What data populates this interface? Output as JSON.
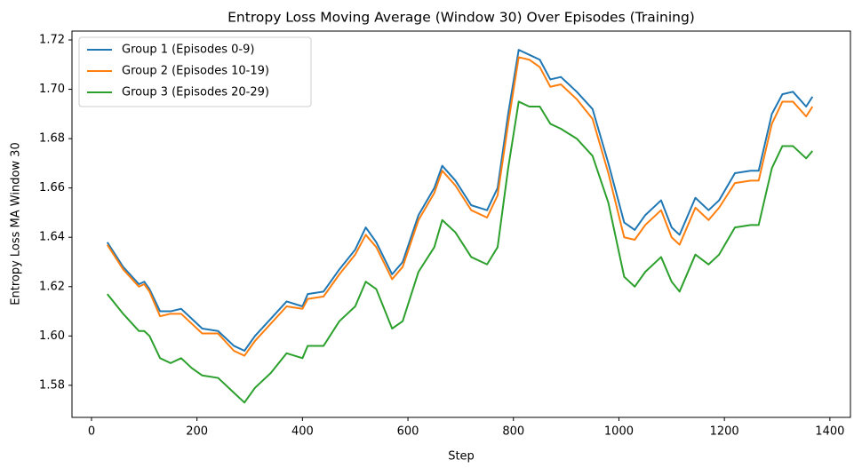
{
  "chart_data": {
    "type": "line",
    "title": "Entropy Loss Moving Average (Window 30) Over Episodes (Training)",
    "x_label": "Step",
    "y_label": "Entropy Loss  MA Window 30",
    "x": [
      30,
      60,
      90,
      100,
      110,
      130,
      150,
      170,
      190,
      210,
      240,
      270,
      290,
      310,
      340,
      370,
      400,
      410,
      440,
      470,
      500,
      520,
      540,
      570,
      590,
      620,
      650,
      665,
      690,
      720,
      750,
      770,
      790,
      810,
      830,
      850,
      870,
      890,
      920,
      950,
      980,
      1010,
      1030,
      1050,
      1080,
      1100,
      1115,
      1145,
      1170,
      1190,
      1220,
      1250,
      1265,
      1290,
      1310,
      1330,
      1355,
      1367
    ],
    "series": [
      {
        "name": "Group 1 (Episodes 0-9)",
        "color": "#1f77b4",
        "values": [
          1.638,
          1.628,
          1.621,
          1.622,
          1.619,
          1.61,
          1.61,
          1.611,
          1.607,
          1.603,
          1.602,
          1.596,
          1.594,
          1.6,
          1.607,
          1.614,
          1.612,
          1.617,
          1.618,
          1.627,
          1.635,
          1.644,
          1.638,
          1.625,
          1.63,
          1.649,
          1.66,
          1.669,
          1.663,
          1.653,
          1.651,
          1.66,
          1.69,
          1.716,
          1.714,
          1.712,
          1.704,
          1.705,
          1.699,
          1.692,
          1.67,
          1.646,
          1.643,
          1.649,
          1.655,
          1.644,
          1.641,
          1.656,
          1.651,
          1.655,
          1.666,
          1.667,
          1.667,
          1.69,
          1.698,
          1.699,
          1.693,
          1.697
        ]
      },
      {
        "name": "Group 2 (Episodes 10-19)",
        "color": "#ff7f0e",
        "values": [
          1.637,
          1.627,
          1.62,
          1.621,
          1.618,
          1.608,
          1.609,
          1.609,
          1.605,
          1.601,
          1.601,
          1.594,
          1.592,
          1.598,
          1.605,
          1.612,
          1.611,
          1.615,
          1.616,
          1.625,
          1.633,
          1.641,
          1.636,
          1.623,
          1.628,
          1.647,
          1.658,
          1.667,
          1.661,
          1.651,
          1.648,
          1.657,
          1.686,
          1.713,
          1.712,
          1.709,
          1.701,
          1.702,
          1.696,
          1.688,
          1.666,
          1.64,
          1.639,
          1.645,
          1.651,
          1.64,
          1.637,
          1.652,
          1.647,
          1.652,
          1.662,
          1.663,
          1.663,
          1.686,
          1.695,
          1.695,
          1.689,
          1.693
        ]
      },
      {
        "name": "Group 3 (Episodes 20-29)",
        "color": "#2ca02c",
        "values": [
          1.617,
          1.609,
          1.602,
          1.602,
          1.6,
          1.591,
          1.589,
          1.591,
          1.587,
          1.584,
          1.583,
          1.577,
          1.573,
          1.579,
          1.585,
          1.593,
          1.591,
          1.596,
          1.596,
          1.606,
          1.612,
          1.622,
          1.619,
          1.603,
          1.606,
          1.626,
          1.636,
          1.647,
          1.642,
          1.632,
          1.629,
          1.636,
          1.668,
          1.695,
          1.693,
          1.693,
          1.686,
          1.684,
          1.68,
          1.673,
          1.654,
          1.624,
          1.62,
          1.626,
          1.632,
          1.622,
          1.618,
          1.633,
          1.629,
          1.633,
          1.644,
          1.645,
          1.645,
          1.668,
          1.677,
          1.677,
          1.672,
          1.675
        ]
      }
    ],
    "xlim": [
      -37,
      1439
    ],
    "ylim": [
      1.567,
      1.7236
    ],
    "xticks": [
      0,
      200,
      400,
      600,
      800,
      1000,
      1200,
      1400
    ],
    "yticks": [
      1.58,
      {
        "value": 1.6,
        "label": "1.60"
      },
      1.62,
      1.64,
      1.66,
      1.68,
      {
        "value": 1.7,
        "label": "1.70"
      },
      1.72
    ],
    "grid": false,
    "legend": "upper left"
  }
}
